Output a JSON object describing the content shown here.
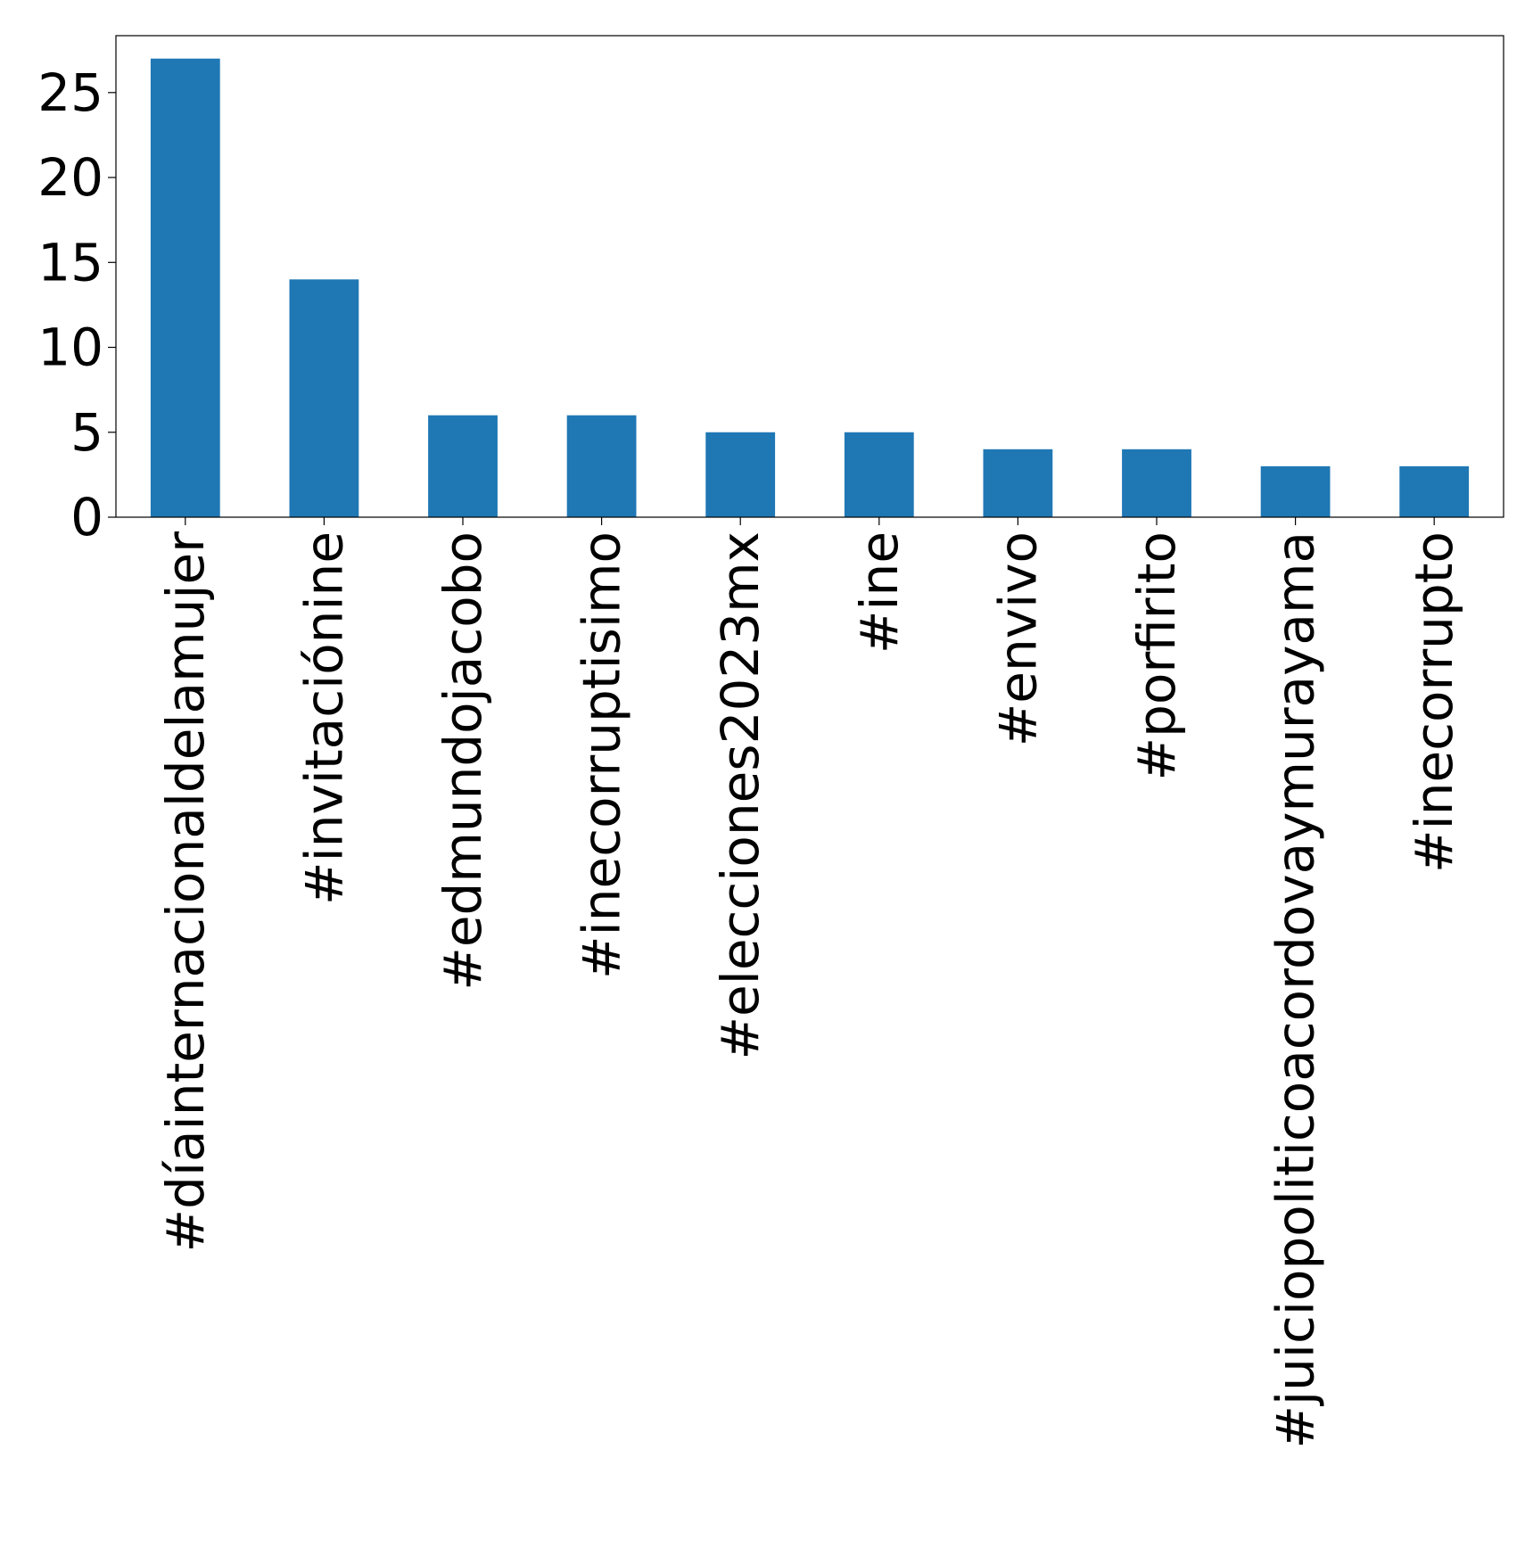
{
  "chart_data": {
    "type": "bar",
    "title": "",
    "xlabel": "",
    "ylabel": "",
    "categories": [
      "#díainternacionaldelamujer",
      "#invitaciónine",
      "#edmundojacobo",
      "#inecorruptisimo",
      "#elecciones2023mx",
      "#ine",
      "#envivo",
      "#porfirito",
      "#juiciopoliticoacordovaymurayama",
      "#inecorrupto"
    ],
    "values": [
      27,
      14,
      6,
      6,
      5,
      5,
      4,
      4,
      3,
      3
    ],
    "ylim": [
      0,
      28.35
    ],
    "yticks": [
      0,
      5,
      10,
      15,
      20,
      25
    ],
    "grid": false,
    "legend": "none",
    "bar_color": "#1f77b4"
  }
}
